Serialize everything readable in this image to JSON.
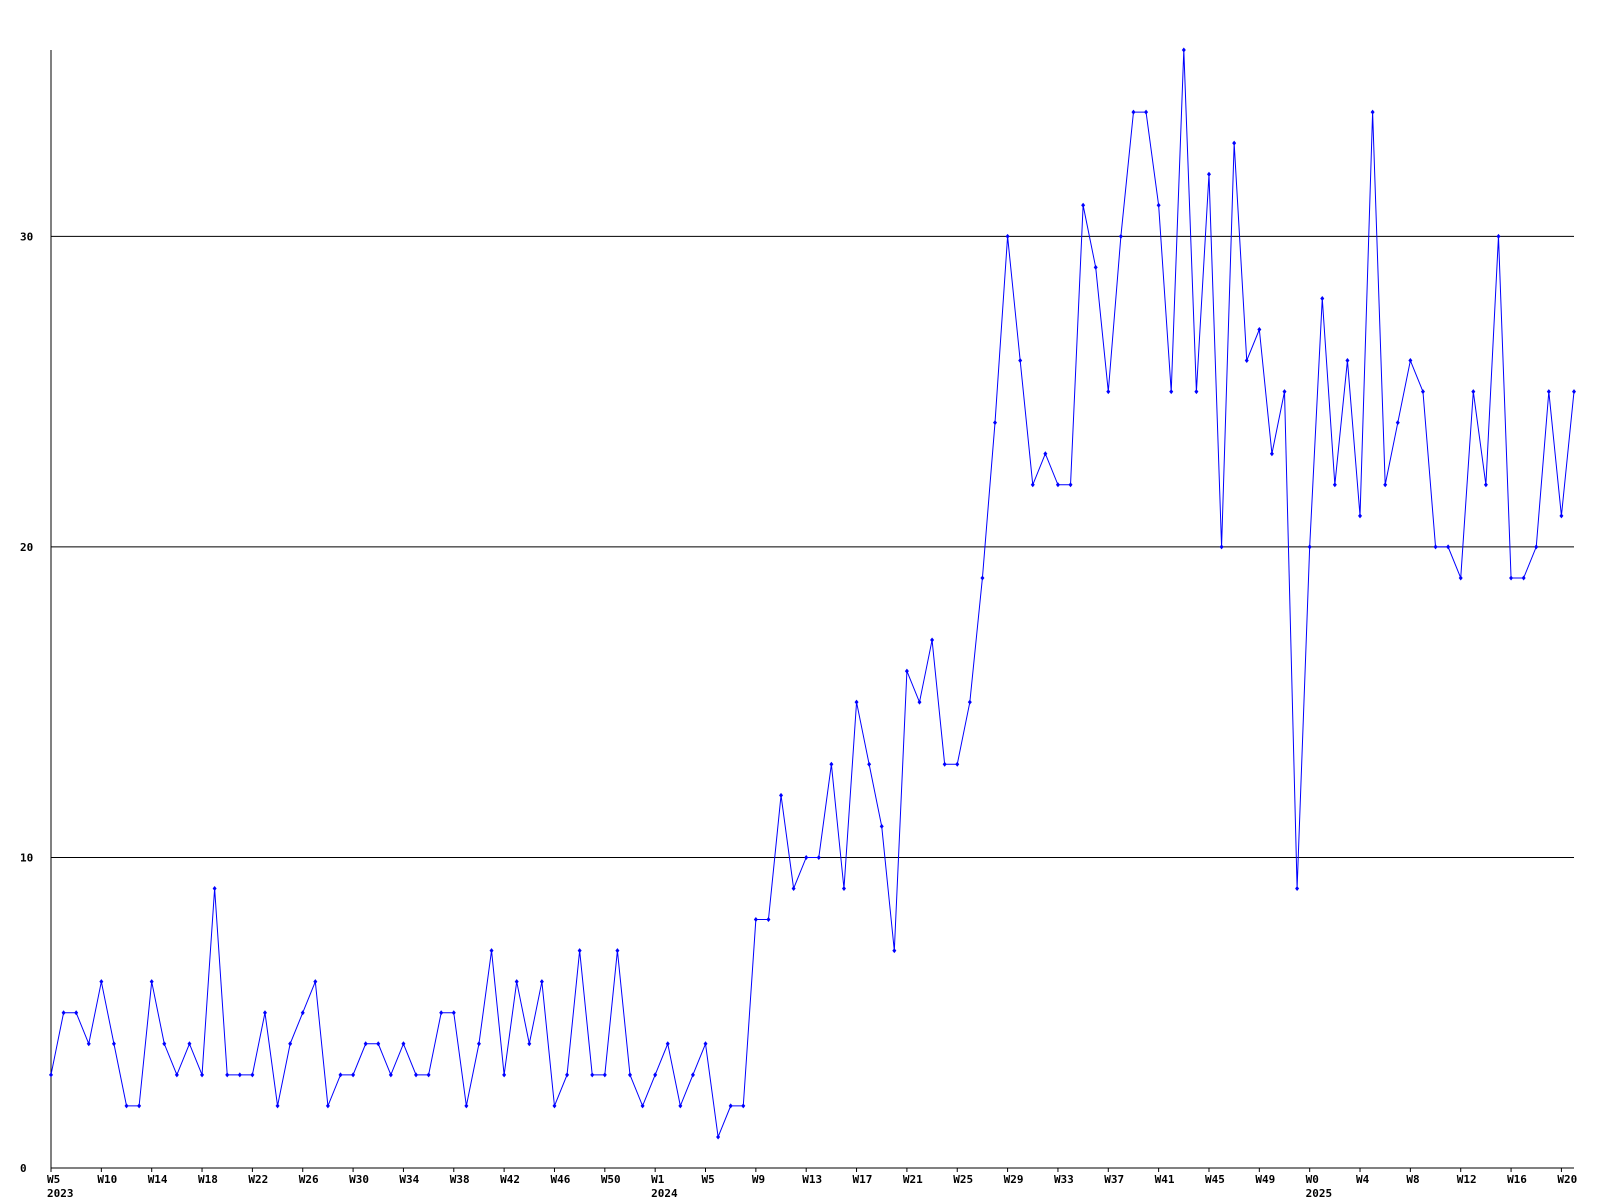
{
  "chart_data": {
    "type": "line",
    "categories": [
      "W5",
      null,
      null,
      null,
      "W10",
      null,
      null,
      null,
      "W14",
      null,
      null,
      null,
      "W18",
      null,
      null,
      null,
      "W22",
      null,
      null,
      null,
      "W26",
      null,
      null,
      null,
      "W30",
      null,
      null,
      null,
      "W34",
      null,
      null,
      null,
      "W38",
      null,
      null,
      null,
      "W42",
      null,
      null,
      null,
      "W46",
      null,
      null,
      null,
      "W50",
      null,
      null,
      null,
      "W1",
      null,
      null,
      null,
      "W5",
      null,
      null,
      null,
      "W9",
      null,
      null,
      null,
      "W13",
      null,
      null,
      null,
      "W17",
      null,
      null,
      null,
      "W21",
      null,
      null,
      null,
      "W25",
      null,
      null,
      null,
      "W29",
      null,
      null,
      null,
      "W33",
      null,
      null,
      null,
      "W37",
      null,
      null,
      null,
      "W41",
      null,
      null,
      null,
      "W45",
      null,
      null,
      null,
      "W49",
      null,
      null,
      null,
      "W0",
      null,
      null,
      null,
      "W4",
      null,
      null,
      null,
      "W8",
      null,
      null,
      null,
      "W12",
      null,
      null,
      null,
      "W16",
      null,
      null,
      null,
      "W20",
      null
    ],
    "category_groups": [
      "2023",
      null,
      null,
      null,
      null,
      null,
      null,
      null,
      null,
      null,
      null,
      null,
      null,
      null,
      null,
      null,
      null,
      null,
      null,
      null,
      null,
      null,
      null,
      null,
      null,
      null,
      null,
      null,
      null,
      null,
      null,
      null,
      null,
      null,
      null,
      null,
      null,
      null,
      null,
      null,
      null,
      null,
      null,
      null,
      null,
      null,
      null,
      null,
      "2024",
      null,
      null,
      null,
      null,
      null,
      null,
      null,
      null,
      null,
      null,
      null,
      null,
      null,
      null,
      null,
      null,
      null,
      null,
      null,
      null,
      null,
      null,
      null,
      null,
      null,
      null,
      null,
      null,
      null,
      null,
      null,
      null,
      null,
      null,
      null,
      null,
      null,
      null,
      null,
      null,
      null,
      null,
      null,
      null,
      null,
      null,
      null,
      null,
      null,
      null,
      null,
      "2025",
      null,
      null,
      null,
      null,
      null,
      null,
      null,
      null,
      null,
      null,
      null,
      null,
      null,
      null,
      null,
      null,
      null,
      null,
      null,
      null,
      null
    ],
    "series": [
      {
        "color": "#0000ff",
        "values": [
          3,
          5,
          5,
          4,
          6,
          4,
          2,
          2,
          6,
          4,
          3,
          4,
          3,
          9,
          3,
          3,
          3,
          5,
          2,
          4,
          5,
          6,
          2,
          3,
          3,
          4,
          4,
          3,
          4,
          3,
          3,
          5,
          5,
          2,
          4,
          7,
          3,
          6,
          4,
          6,
          2,
          3,
          7,
          3,
          3,
          7,
          3,
          2,
          3,
          4,
          2,
          3,
          4,
          1,
          2,
          2,
          8,
          8,
          12,
          9,
          10,
          10,
          13,
          9,
          15,
          13,
          11,
          7,
          16,
          15,
          17,
          13,
          13,
          15,
          19,
          24,
          30,
          26,
          22,
          23,
          22,
          22,
          31,
          29,
          25,
          30,
          34,
          34,
          31,
          25,
          36,
          25,
          32,
          20,
          33,
          26,
          27,
          23,
          25,
          9,
          20,
          28,
          22,
          26,
          21,
          34,
          22,
          24,
          26,
          25,
          20,
          20,
          19,
          25,
          22,
          30,
          19,
          19,
          20,
          25,
          21,
          25
        ]
      }
    ],
    "ylim": [
      0,
      36
    ],
    "yticks": [
      0,
      10,
      20,
      30
    ],
    "grid": true,
    "grid_color": "#000000"
  }
}
